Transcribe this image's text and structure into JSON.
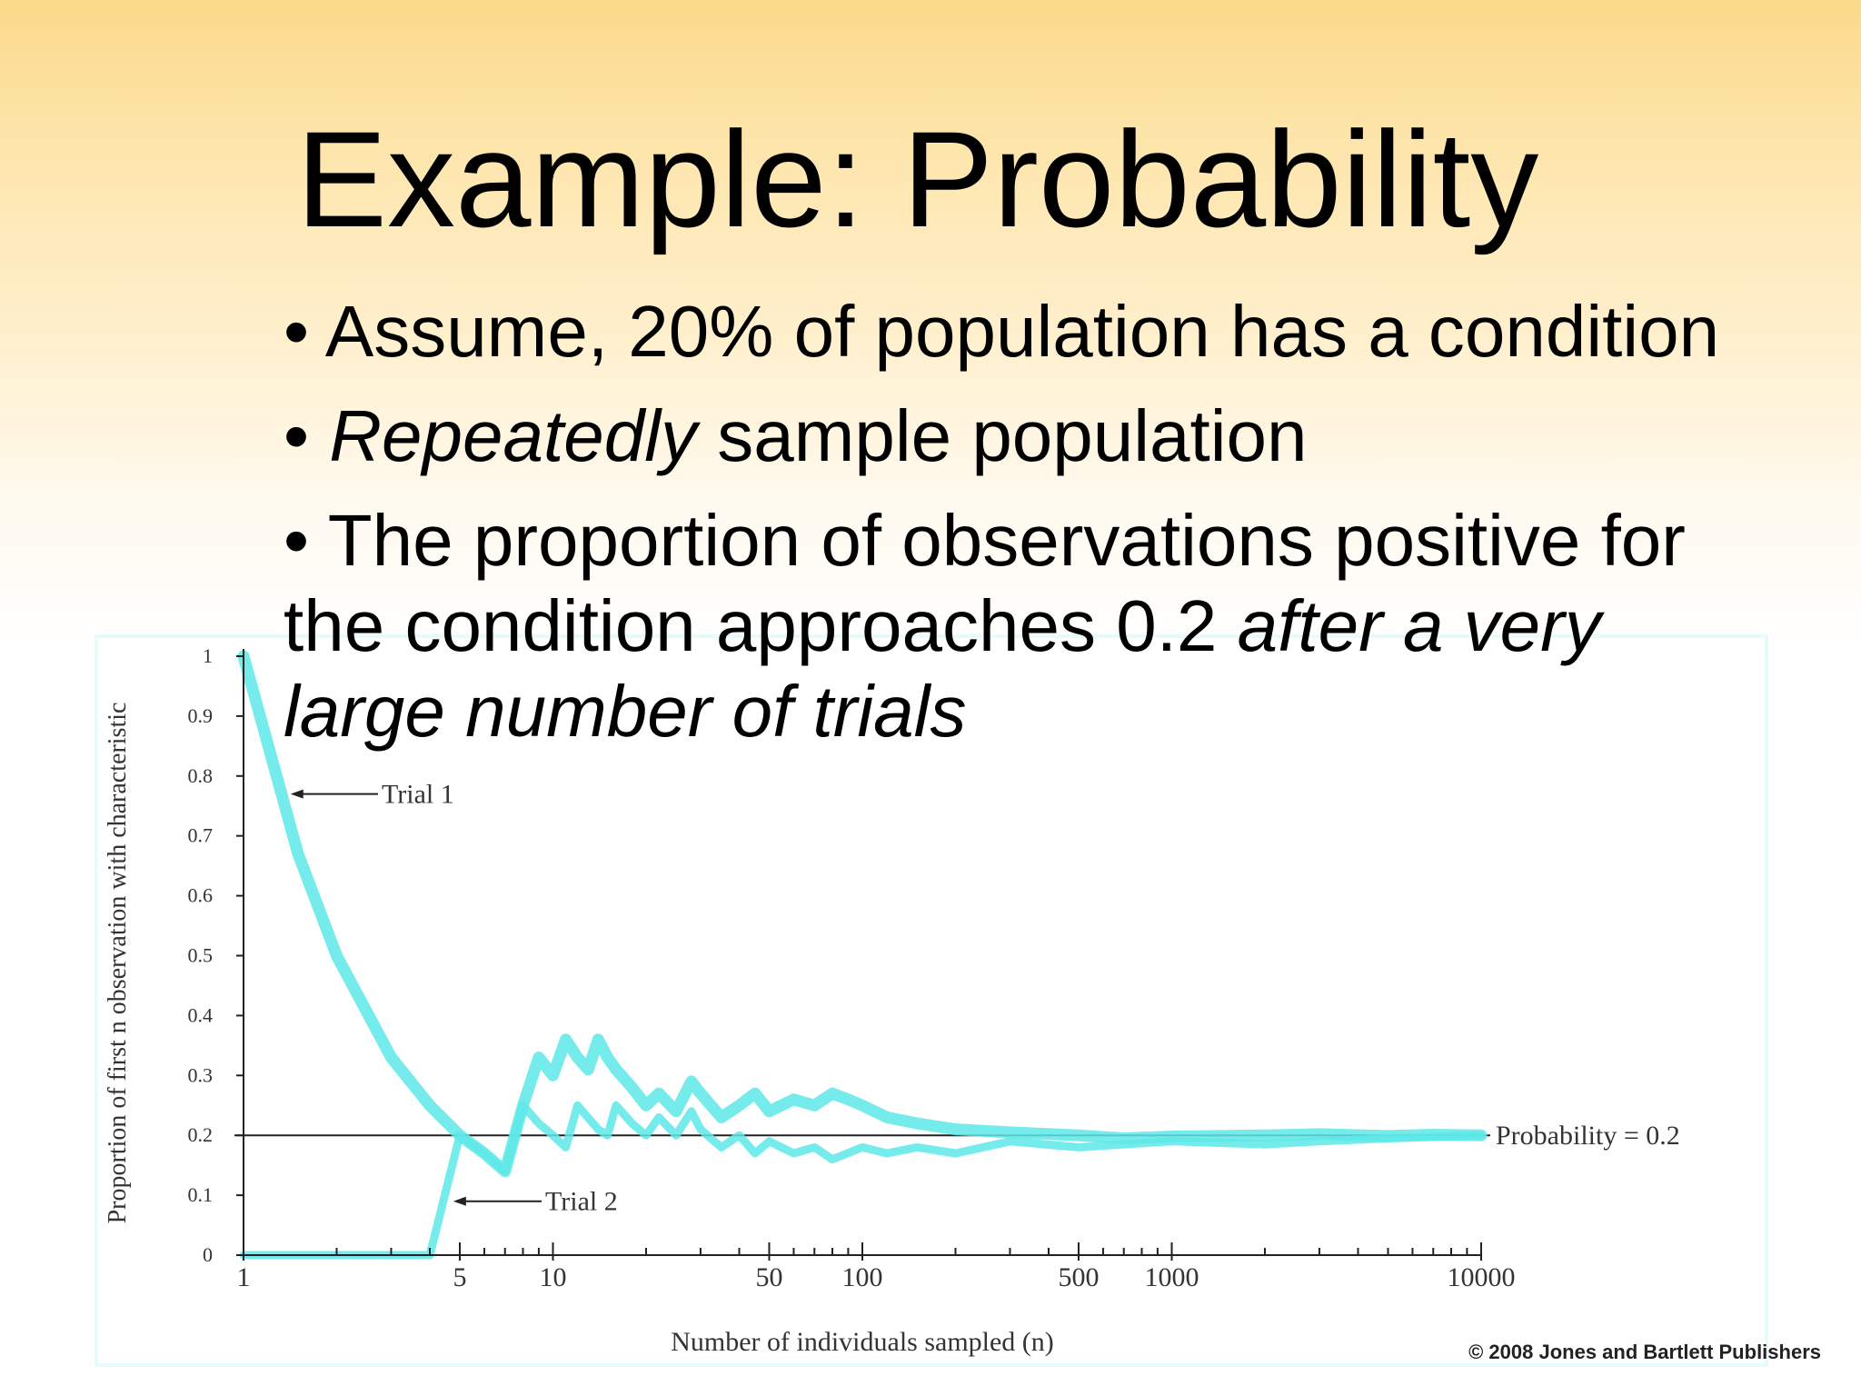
{
  "slide": {
    "title": "Example: Probability",
    "bullets": [
      {
        "text": "Assume, 20% of population has a condition"
      },
      {
        "italic": "Repeatedly",
        "rest": " sample population"
      },
      {
        "text": "The proportion of observations positive for the condition approaches 0.2 ",
        "italic": "after a very large number of trials"
      }
    ],
    "credit": "© 2008 Jones and Bartlett Publishers"
  },
  "chart_data": {
    "type": "line",
    "title": "",
    "xlabel": "Number of individuals sampled (n)",
    "ylabel": "Proportion of first n observation with characteristic",
    "x_scale": "log",
    "xlim": [
      1,
      10000
    ],
    "ylim": [
      0,
      1
    ],
    "xticks": [
      "1",
      "5",
      "10",
      "50",
      "100",
      "500",
      "1000",
      "10000"
    ],
    "xtick_values": [
      1,
      5,
      10,
      50,
      100,
      500,
      1000,
      10000
    ],
    "yticks": [
      "0",
      "0.1",
      "0.2",
      "0.3",
      "0.4",
      "0.5",
      "0.6",
      "0.7",
      "0.8",
      "0.9",
      "1"
    ],
    "ytick_values": [
      0,
      0.1,
      0.2,
      0.3,
      0.4,
      0.5,
      0.6,
      0.7,
      0.8,
      0.9,
      1
    ],
    "reference_line": {
      "y": 0.2,
      "label": "Probability = 0.2"
    },
    "series": [
      {
        "name": "Trial 1",
        "color": "#5ee8e8",
        "x": [
          1,
          1.5,
          2,
          3,
          4,
          5,
          6,
          7,
          8,
          9,
          10,
          11,
          12,
          13,
          14,
          15,
          16,
          18,
          20,
          22,
          25,
          28,
          30,
          35,
          40,
          45,
          50,
          60,
          70,
          80,
          90,
          100,
          120,
          150,
          200,
          300,
          500,
          700,
          1000,
          2000,
          3000,
          5000,
          7000,
          10000
        ],
        "y": [
          1,
          0.67,
          0.5,
          0.33,
          0.25,
          0.2,
          0.17,
          0.14,
          0.25,
          0.33,
          0.3,
          0.36,
          0.33,
          0.31,
          0.36,
          0.33,
          0.31,
          0.28,
          0.25,
          0.27,
          0.24,
          0.29,
          0.27,
          0.23,
          0.25,
          0.27,
          0.24,
          0.26,
          0.25,
          0.27,
          0.26,
          0.25,
          0.23,
          0.22,
          0.21,
          0.205,
          0.2,
          0.195,
          0.198,
          0.2,
          0.202,
          0.199,
          0.201,
          0.2
        ]
      },
      {
        "name": "Trial 2",
        "color": "#5ee8e8",
        "x": [
          1,
          2,
          3,
          4,
          5,
          6,
          7,
          8,
          9,
          10,
          11,
          12,
          14,
          15,
          16,
          18,
          20,
          22,
          25,
          28,
          30,
          35,
          40,
          45,
          50,
          60,
          70,
          80,
          100,
          120,
          150,
          200,
          300,
          500,
          700,
          1000,
          2000,
          3000,
          5000,
          10000
        ],
        "y": [
          0,
          0,
          0,
          0,
          0.2,
          0.17,
          0.14,
          0.25,
          0.22,
          0.2,
          0.18,
          0.25,
          0.21,
          0.2,
          0.25,
          0.22,
          0.2,
          0.23,
          0.2,
          0.24,
          0.21,
          0.18,
          0.2,
          0.17,
          0.19,
          0.17,
          0.18,
          0.16,
          0.18,
          0.17,
          0.18,
          0.17,
          0.19,
          0.18,
          0.185,
          0.19,
          0.185,
          0.19,
          0.195,
          0.2
        ]
      }
    ],
    "annotations": [
      {
        "text": "Trial 1",
        "series": "Trial 1",
        "at_x": 1.4
      },
      {
        "text": "Trial 2",
        "series": "Trial 2",
        "at_x": 4.7
      }
    ],
    "grid": false,
    "legend": "none"
  }
}
